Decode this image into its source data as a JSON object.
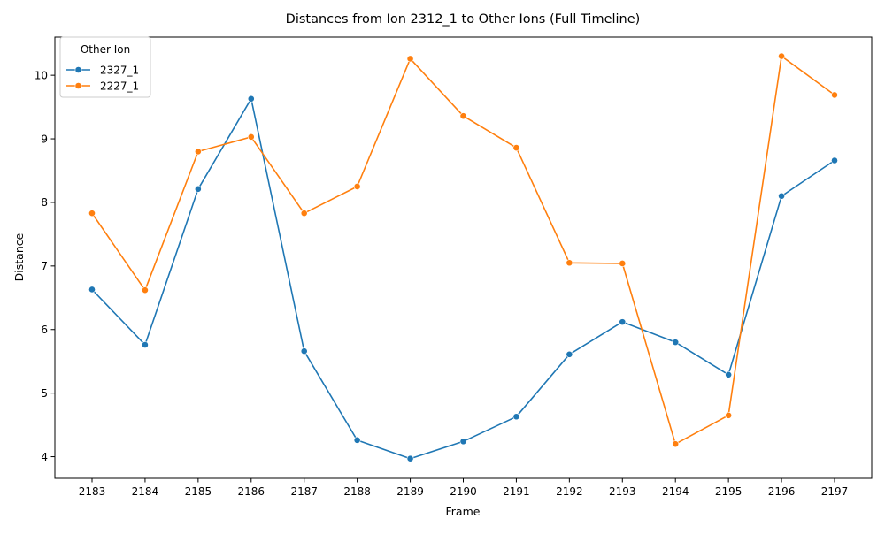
{
  "chart_data": {
    "type": "line",
    "title": "Distances from Ion 2312_1 to Other Ions (Full Timeline)",
    "xlabel": "Frame",
    "ylabel": "Distance",
    "categories": [
      "2183",
      "2184",
      "2185",
      "2186",
      "2187",
      "2188",
      "2189",
      "2190",
      "2191",
      "2192",
      "2193",
      "2194",
      "2195",
      "2196",
      "2197"
    ],
    "y_ticks": [
      4,
      5,
      6,
      7,
      8,
      9,
      10
    ],
    "ylim": [
      3.66,
      10.6
    ],
    "grid": false,
    "legend": {
      "title": "Other Ion",
      "position": "top-left"
    },
    "series": [
      {
        "name": "2327_1",
        "color": "#1f77b4",
        "values": [
          6.63,
          5.76,
          8.21,
          9.63,
          5.66,
          4.26,
          3.97,
          4.24,
          4.63,
          5.61,
          6.12,
          5.8,
          5.29,
          8.1,
          8.66
        ]
      },
      {
        "name": "2227_1",
        "color": "#ff7f0e",
        "values": [
          7.83,
          6.62,
          8.8,
          9.03,
          7.83,
          8.25,
          10.26,
          9.36,
          8.86,
          7.05,
          7.04,
          4.2,
          4.65,
          10.3,
          9.69
        ]
      }
    ]
  }
}
